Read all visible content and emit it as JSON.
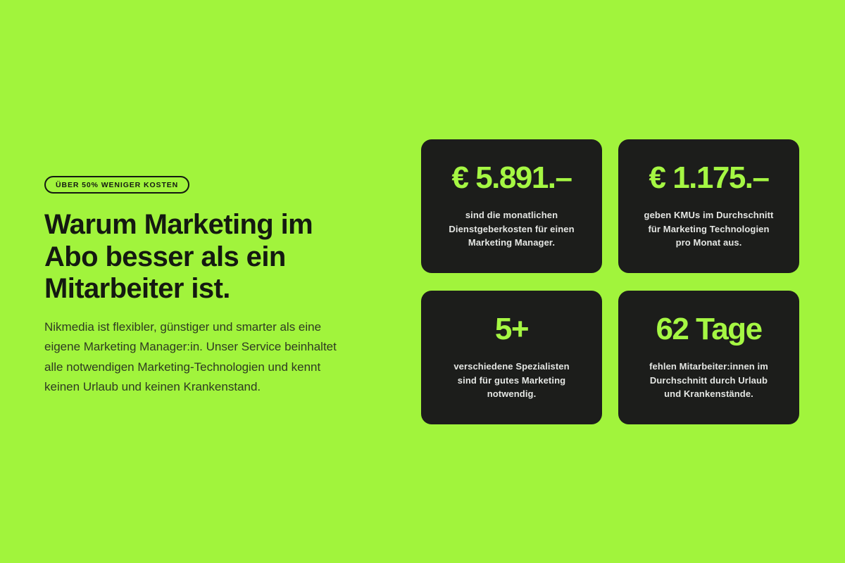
{
  "theme": {
    "background": "#A1F43C",
    "card_background": "#1C1D1B",
    "accent": "#A5F743",
    "heading_color": "#141911",
    "paragraph_color": "#2E3A22",
    "card_text_color": "#E4E6E3"
  },
  "intro": {
    "badge": "ÜBER 50% WENIGER KOSTEN",
    "heading_lines": [
      "Warum Marketing im",
      "Abo besser als ein",
      "Mitarbeiter ist."
    ],
    "paragraph_lines": [
      "Nikmedia ist flexibler, günstiger und smarter als eine",
      "eigene Marketing Manager:in. Unser Service beinhaltet",
      "alle notwendigen Marketing-Technologien und kennt",
      "keinen Urlaub und keinen Krankenstand."
    ]
  },
  "stats": [
    {
      "value": "€ 5.891.–",
      "description_lines": [
        "sind die monatlichen",
        "Dienstgeberkosten für einen",
        "Marketing Manager."
      ]
    },
    {
      "value": "€ 1.175.–",
      "description_lines": [
        "geben KMUs im Durchschnitt",
        "für Marketing Technologien",
        "pro Monat aus."
      ]
    },
    {
      "value": "5+",
      "description_lines": [
        "verschiedene Spezialisten",
        "sind für gutes Marketing",
        "notwendig."
      ]
    },
    {
      "value": "62 Tage",
      "description_lines": [
        "fehlen Mitarbeiter:innen im",
        "Durchschnitt durch Urlaub",
        "und Krankenstände."
      ]
    }
  ]
}
